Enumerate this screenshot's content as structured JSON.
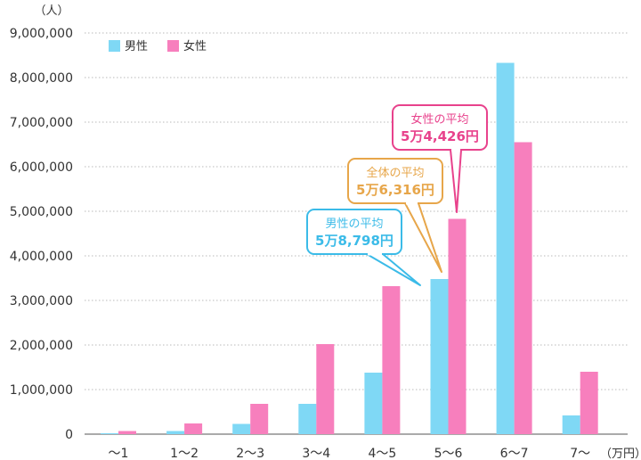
{
  "chart_data": {
    "type": "bar",
    "y_unit": "（人）",
    "x_unit": "（万円）",
    "categories": [
      "〜1",
      "1〜2",
      "2〜3",
      "3〜4",
      "4〜5",
      "5〜6",
      "6〜7",
      "7〜"
    ],
    "series": [
      {
        "name": "男性",
        "color": "#7fd8f5",
        "values": [
          20000,
          70000,
          230000,
          680000,
          1380000,
          3480000,
          8330000,
          420000
        ]
      },
      {
        "name": "女性",
        "color": "#f77fbd",
        "values": [
          70000,
          240000,
          680000,
          2020000,
          3320000,
          4830000,
          6550000,
          1400000
        ]
      }
    ],
    "ylim": [
      0,
      9000000
    ],
    "yticks": [
      "0",
      "1,000,000",
      "2,000,000",
      "3,000,000",
      "4,000,000",
      "5,000,000",
      "6,000,000",
      "7,000,000",
      "8,000,000",
      "9,000,000"
    ],
    "grid": true,
    "legend_position": "top-left",
    "annotations": [
      {
        "title": "男性の平均",
        "value": "5万8,798円",
        "color": "#3bbbe8"
      },
      {
        "title": "全体の平均",
        "value": "5万6,316円",
        "color": "#e7a64a"
      },
      {
        "title": "女性の平均",
        "value": "5万4,426円",
        "color": "#e8428c"
      }
    ]
  }
}
